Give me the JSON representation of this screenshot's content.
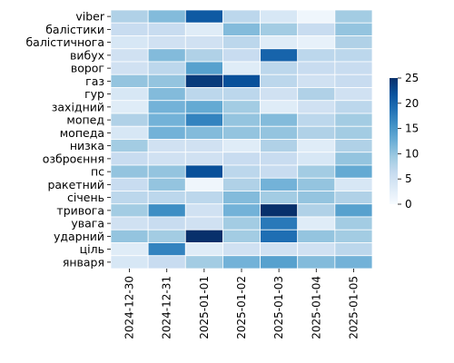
{
  "chart_data": {
    "type": "heatmap",
    "rows": [
      "viber",
      "балістики",
      "балістичнога",
      "вибух",
      "ворог",
      "газ",
      "гур",
      "західний",
      "мопед",
      "мопеда",
      "низка",
      "озброєння",
      "пс",
      "ракетний",
      "січень",
      "тривога",
      "увага",
      "ударний",
      "ціль",
      "января"
    ],
    "columns": [
      "2024-12-30",
      "2024-12-31",
      "2025-01-01",
      "2025-01-02",
      "2025-01-03",
      "2025-01-04",
      "2025-01-05"
    ],
    "values": [
      [
        8,
        11,
        21,
        7,
        4,
        1,
        9
      ],
      [
        6,
        6,
        3,
        11,
        9,
        6,
        10
      ],
      [
        4,
        5,
        5,
        7,
        3,
        2,
        8
      ],
      [
        5,
        11,
        8,
        6,
        20,
        7,
        7
      ],
      [
        5,
        7,
        14,
        3,
        7,
        6,
        6
      ],
      [
        10,
        10,
        24,
        22,
        7,
        5,
        6
      ],
      [
        4,
        11,
        7,
        7,
        5,
        8,
        5
      ],
      [
        3,
        12,
        13,
        9,
        3,
        5,
        7
      ],
      [
        8,
        12,
        17,
        10,
        11,
        7,
        9
      ],
      [
        4,
        12,
        11,
        10,
        10,
        8,
        9
      ],
      [
        9,
        5,
        5,
        3,
        8,
        3,
        8
      ],
      [
        6,
        5,
        5,
        6,
        6,
        4,
        10
      ],
      [
        10,
        10,
        22,
        7,
        6,
        9,
        13
      ],
      [
        6,
        10,
        1,
        8,
        12,
        10,
        4
      ],
      [
        7,
        7,
        7,
        11,
        9,
        10,
        8
      ],
      [
        9,
        16,
        5,
        12,
        25,
        8,
        14
      ],
      [
        5,
        6,
        5,
        9,
        18,
        3,
        9
      ],
      [
        10,
        9,
        26,
        9,
        19,
        10,
        9
      ],
      [
        3,
        17,
        3,
        5,
        5,
        5,
        7
      ],
      [
        4,
        6,
        9,
        12,
        14,
        11,
        12
      ]
    ],
    "colorbar": {
      "min": 0,
      "max": 25,
      "ticks": [
        0,
        5,
        10,
        15,
        20,
        25
      ]
    },
    "colormap": "Blues",
    "grid_lines": "white"
  }
}
